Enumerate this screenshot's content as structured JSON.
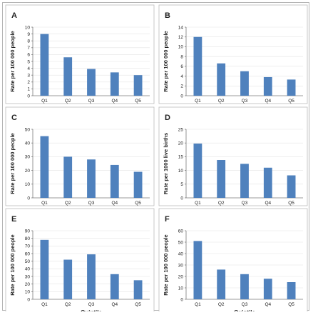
{
  "colors": {
    "bar": "#4f81bd"
  },
  "chart_data": [
    {
      "panel": "A",
      "type": "bar",
      "categories": [
        "Q1",
        "Q2",
        "Q3",
        "Q4",
        "Q5"
      ],
      "values": [
        9.0,
        5.6,
        3.9,
        3.4,
        3.0
      ],
      "ylabel": "Rate per 100 000 people",
      "xlabel": "",
      "ylim": [
        0,
        10
      ],
      "ystep": 1,
      "grid": true
    },
    {
      "panel": "B",
      "type": "bar",
      "categories": [
        "Q1",
        "Q2",
        "Q3",
        "Q4",
        "Q5"
      ],
      "values": [
        12.0,
        6.6,
        5.0,
        3.8,
        3.3
      ],
      "ylabel": "Rate per 100 000 people",
      "xlabel": "",
      "ylim": [
        0,
        14
      ],
      "ystep": 2,
      "grid": true
    },
    {
      "panel": "C",
      "type": "bar",
      "categories": [
        "Q1",
        "Q2",
        "Q3",
        "Q4",
        "Q5"
      ],
      "values": [
        45,
        30,
        28,
        24,
        19
      ],
      "ylabel": "Rate per 100 000 people",
      "xlabel": "",
      "ylim": [
        0,
        50
      ],
      "ystep": 10,
      "grid": true
    },
    {
      "panel": "D",
      "type": "bar",
      "categories": [
        "Q1",
        "Q2",
        "Q3",
        "Q4",
        "Q5"
      ],
      "values": [
        19.8,
        13.8,
        12.4,
        11.0,
        8.2
      ],
      "ylabel": "Rate per 1000 live births",
      "xlabel": "",
      "ylim": [
        0,
        25
      ],
      "ystep": 5,
      "grid": true
    },
    {
      "panel": "E",
      "type": "bar",
      "categories": [
        "Q1",
        "Q2",
        "Q3",
        "Q4",
        "Q5"
      ],
      "values": [
        78,
        52,
        59,
        33,
        25
      ],
      "ylabel": "Rate per 100 000 people",
      "xlabel": "Quintile",
      "ylim": [
        0,
        90
      ],
      "ystep": 10,
      "grid": true
    },
    {
      "panel": "F",
      "type": "bar",
      "categories": [
        "Q1",
        "Q2",
        "Q3",
        "Q4",
        "Q5"
      ],
      "values": [
        51,
        26,
        22,
        18,
        15
      ],
      "ylabel": "Rate per 100 000 people",
      "xlabel": "Quintile",
      "ylim": [
        0,
        60
      ],
      "ystep": 10,
      "grid": true
    }
  ]
}
